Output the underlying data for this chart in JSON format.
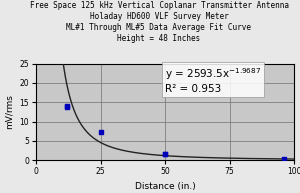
{
  "title_lines": [
    "Free Space 125 kHz Vertical Coplanar Transmitter Antenna",
    "Holaday HD600 VLF Survey Meter",
    "ML#1 Through ML#5 Data Average Fit Curve",
    "Height = 48 Inches"
  ],
  "xlabel": "Distance (in.)",
  "ylabel": "mV/rms",
  "scatter_x": [
    12,
    12,
    25,
    50,
    50,
    96
  ],
  "scatter_y": [
    14.0,
    13.8,
    7.2,
    1.7,
    1.5,
    0.2
  ],
  "coeff": 2593.5,
  "exponent": -1.9687,
  "r_squared": 0.953,
  "xlim": [
    0,
    100
  ],
  "ylim": [
    0,
    25
  ],
  "xticks": [
    0,
    25,
    50,
    75,
    100
  ],
  "yticks": [
    0,
    5,
    10,
    15,
    20,
    25
  ],
  "bg_color": "#c8c8c8",
  "fig_color": "#e8e8e8",
  "scatter_color": "#0000bb",
  "curve_color": "#222222",
  "title_fontsize": 5.5,
  "axis_label_fontsize": 6.5,
  "tick_fontsize": 5.5,
  "annotation_fontsize": 7.5
}
